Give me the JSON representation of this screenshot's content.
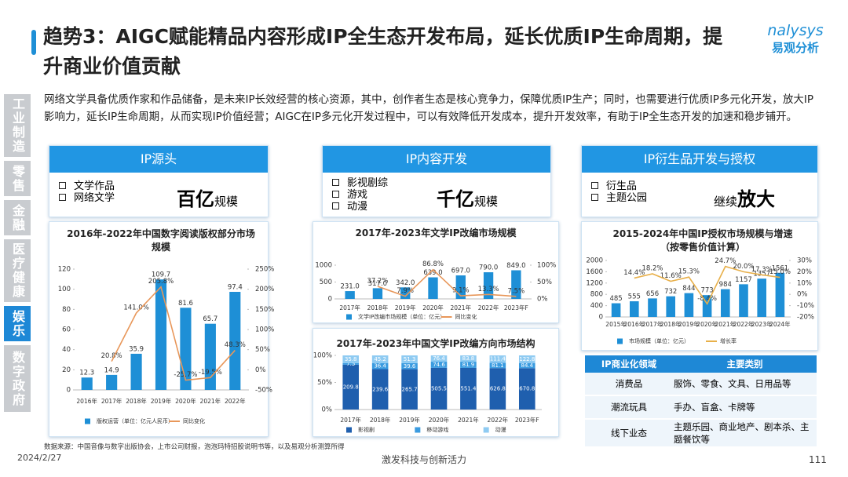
{
  "title": "趋势3：AIGC赋能精品内容形成IP全生态开发布局，延长优质IP生命周期，提升商业价值贡献",
  "logo": {
    "brand": "nalysys",
    "sub": "易观分析"
  },
  "sidebar": [
    "工业制造",
    "零售",
    "金融",
    "医疗健康",
    "娱乐",
    "数字政府"
  ],
  "intro": "网络文学具备优质作家和作品储备，是未来IP长效经营的核心资源，其中，创作者生态是核心竞争力，保障优质IP生产；同时，也需要进行优质IP多元化开发，放大IP影响力，延长IP生命周期，从而实现IP价值经营；AIGC在IP多元化开发过程中，可以有效降低开发成本，提升开发效率，有助于IP全生态开发的加速和稳步铺开。",
  "panels": [
    {
      "title": "IP源头",
      "items": [
        "文学作品",
        "网络文学"
      ],
      "big": "百亿",
      "suffix": "规模"
    },
    {
      "title": "IP内容开发",
      "items": [
        "影视剧综",
        "游戏",
        "动漫"
      ],
      "big": "千亿",
      "suffix": "规模"
    },
    {
      "title": "IP衍生品开发与授权",
      "items": [
        "衍生品",
        "主题公园"
      ],
      "lead": "继续",
      "big": "放大"
    }
  ],
  "chart_data": [
    {
      "type": "combo",
      "title": "2016年-2022年中国数字阅读版权部分市场规模",
      "categories": [
        "2016年",
        "2017年",
        "2018年",
        "2019年",
        "2020年",
        "2021年",
        "2022年"
      ],
      "series": [
        {
          "name": "版权运营（单位：亿元人民币）",
          "type": "bar",
          "color": "#1e8fd6",
          "values": [
            12.3,
            14.9,
            35.9,
            109.7,
            81.6,
            65.7,
            97.4
          ]
        },
        {
          "name": "同比变化",
          "type": "line",
          "axis": "y2",
          "color": "#e8975a",
          "values": [
            null,
            20.8,
            141.0,
            205.8,
            -25.7,
            -19.5,
            48.3
          ],
          "value_labels": [
            null,
            "20.8%",
            "141.0%",
            "205.8%",
            "-25.7%",
            "-19.5%",
            "48.3%"
          ]
        }
      ],
      "ylim": [
        0,
        120
      ],
      "yticks": [
        0,
        20,
        40,
        60,
        80,
        100,
        120
      ],
      "y2lim": [
        -50,
        250
      ],
      "y2ticks": [
        {
          "value": -50,
          "label": "-50%"
        },
        {
          "value": 0,
          "label": "0%"
        },
        {
          "value": 50,
          "label": "50%"
        },
        {
          "value": 100,
          "label": "100%"
        },
        {
          "value": 150,
          "label": "150%"
        },
        {
          "value": 200,
          "label": "200%"
        },
        {
          "value": 250,
          "label": "250%"
        }
      ]
    },
    {
      "type": "combo",
      "title": "2017年-2023年文学IP改编市场规模",
      "categories": [
        "2017年",
        "2018年",
        "2019年",
        "2020年",
        "2021年",
        "2022年",
        "2023年F"
      ],
      "series": [
        {
          "name": "文学IP改编市场规模（单位：亿元）",
          "type": "bar",
          "color": "#1e8fd6",
          "values": [
            231,
            317,
            342,
            639,
            697,
            790,
            849
          ],
          "value_labels": [
            "231.0",
            "317.0",
            "342.0",
            "639.0",
            "697.0",
            "790.0",
            "849.0"
          ]
        },
        {
          "name": "同比变化",
          "type": "line",
          "axis": "y2",
          "color": "#e8975a",
          "values": [
            null,
            37.2,
            7.9,
            86.8,
            9.1,
            13.3,
            7.5
          ],
          "value_labels": [
            null,
            "37.2%",
            "7.9%",
            "86.8%",
            "9.1%",
            "13.3%",
            "7.5%"
          ]
        }
      ],
      "ylim": [
        0,
        1000
      ],
      "yticks": [
        0,
        500,
        1000
      ],
      "y2lim": [
        0,
        100
      ],
      "y2ticks": [
        {
          "value": 0,
          "label": "0%"
        },
        {
          "value": 50,
          "label": "50%"
        },
        {
          "value": 100,
          "label": "100%"
        }
      ]
    },
    {
      "type": "stacked100",
      "title": "2017年-2023年中国文学IP改编方向市场结构",
      "categories": [
        "2017年",
        "2018年",
        "2019年",
        "2020年",
        "2021年",
        "2022年",
        "2023年F"
      ],
      "series": [
        {
          "name": "影视剧",
          "color": "#1f5fae",
          "values": [
            209.8,
            239.6,
            265.7,
            505.5,
            551.4,
            626.8,
            670.8
          ]
        },
        {
          "name": "移动游戏",
          "color": "#3a9be0",
          "values": [
            7.5,
            36.4,
            39.6,
            74.6,
            81.9,
            81.1,
            84.4
          ]
        },
        {
          "name": "动漫",
          "color": "#8fcbf2",
          "values": [
            35.8,
            45.2,
            51.3,
            76.4,
            83.8,
            111.4,
            122.8
          ]
        }
      ],
      "ylim": [
        0,
        100
      ],
      "yticks": [
        {
          "value": 0,
          "label": "0%"
        },
        {
          "value": 50,
          "label": "50%"
        },
        {
          "value": 100,
          "label": "100%"
        }
      ]
    },
    {
      "type": "combo",
      "title": "2015-2024年中国IP授权市场规模与增速（按零售价值计算）",
      "categories": [
        "2015年",
        "2016年",
        "2017年",
        "2018年",
        "2019年",
        "2020年",
        "2021年",
        "2022年",
        "2023年",
        "2024年"
      ],
      "series": [
        {
          "name": "市场规模（单位：亿元）",
          "type": "bar",
          "color": "#1e8fd6",
          "values": [
            485,
            555,
            656,
            732,
            844,
            773,
            984,
            1157,
            1357,
            1561
          ]
        },
        {
          "name": "增长率",
          "type": "line",
          "axis": "y2",
          "color": "#e8b04a",
          "values": [
            null,
            14.4,
            18.2,
            11.6,
            15.3,
            -8.4,
            24.7,
            20.0,
            17.3,
            15.0
          ],
          "value_labels": [
            null,
            "14.4%",
            "18.2%",
            "11.6%",
            "15.3%",
            "-8.4%",
            "24.7%",
            "20.0%",
            "17.3%",
            "15.0%"
          ]
        }
      ],
      "ylim": [
        0,
        2000
      ],
      "yticks": [
        0,
        400,
        800,
        1200,
        1600,
        2000
      ],
      "y2lim": [
        -20,
        30
      ],
      "y2ticks": [
        {
          "value": -20,
          "label": "-20%"
        },
        {
          "value": -10,
          "label": "-10%"
        },
        {
          "value": 0,
          "label": "0%"
        },
        {
          "value": 10,
          "label": "10%"
        },
        {
          "value": 20,
          "label": "20%"
        },
        {
          "value": 30,
          "label": "30%"
        }
      ]
    }
  ],
  "table": {
    "header": [
      "IP商业化领域",
      "主要类别"
    ],
    "rows": [
      [
        "消费品",
        "服饰、零食、文具、日用品等"
      ],
      [
        "潮流玩具",
        "手办、盲盒、卡牌等"
      ],
      [
        "线下业态",
        "主题乐园、商业地产、剧本杀、主题餐饮等"
      ]
    ]
  },
  "source": "数据来源：中国音像与数字出版协会，上市公司财报，泡泡玛特招股说明书等，以及易观分析测算所得",
  "date": "2024/2/27",
  "footer": "激发科技与创新活力",
  "page": "111"
}
